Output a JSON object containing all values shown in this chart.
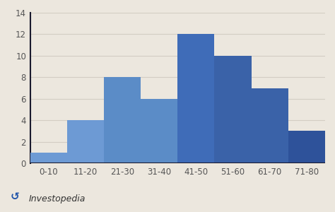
{
  "categories": [
    "0-10",
    "11-20",
    "21-30",
    "31-40",
    "41-50",
    "51-60",
    "61-70",
    "71-80"
  ],
  "values": [
    1,
    4,
    8,
    6,
    12,
    10,
    7,
    3
  ],
  "bar_colors": [
    "#6d9ad4",
    "#6d9ad4",
    "#5b8cc7",
    "#5b8cc7",
    "#3f6cb8",
    "#3a62a8",
    "#3a62a8",
    "#2e529a"
  ],
  "background_color": "#ece7de",
  "grid_color": "#d3cdc3",
  "axis_color": "#1a1a2e",
  "ylim": [
    0,
    14
  ],
  "yticks": [
    0,
    2,
    4,
    6,
    8,
    10,
    12,
    14
  ],
  "tick_fontsize": 8.5,
  "tick_color": "#555555",
  "investopedia_text": "Investopedia",
  "investopedia_fontsize": 9
}
